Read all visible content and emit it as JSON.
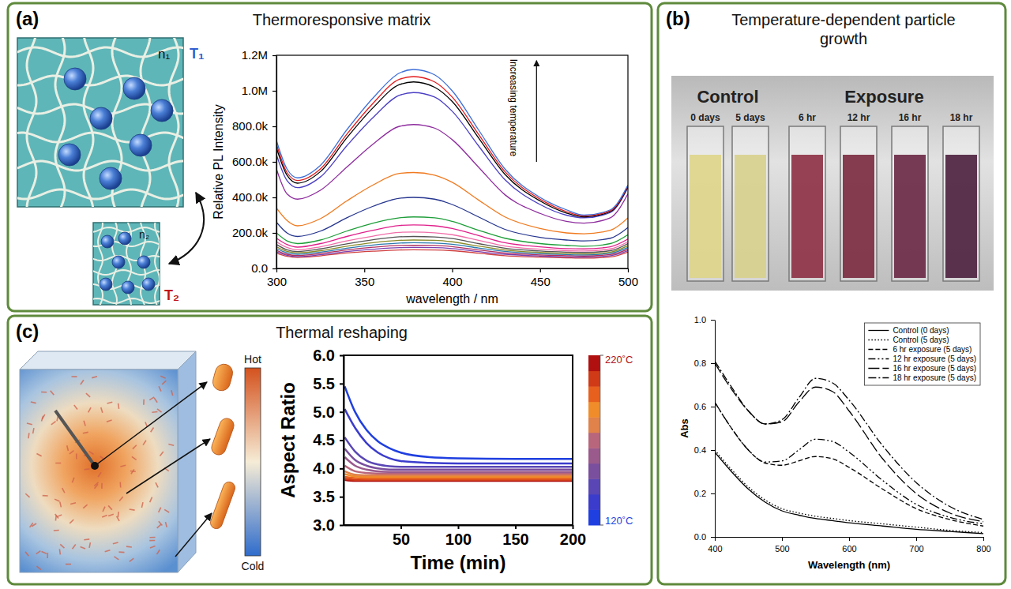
{
  "chart_data": [
    {
      "panel": "(a)",
      "title": "Thermoresponsive matrix",
      "type": "line",
      "annotations": [
        "Increasing temperature",
        "n₁",
        "T₁",
        "n₂",
        "T₂"
      ],
      "xlabel": "wavelength / nm",
      "ylabel": "Relative PL Intensity",
      "x": [
        300,
        306,
        312,
        325,
        340,
        355,
        370,
        378,
        390,
        400,
        415,
        430,
        450,
        465,
        475,
        490,
        500
      ],
      "xlim": [
        300,
        500
      ],
      "xticks": [
        300,
        350,
        400,
        450,
        500
      ],
      "ylim": [
        0,
        1200000
      ],
      "yticks": [
        {
          "value": 0,
          "label": "0.0"
        },
        {
          "value": 200000,
          "label": "200.0k"
        },
        {
          "value": 400000,
          "label": "400.0k"
        },
        {
          "value": 600000,
          "label": "600.0k"
        },
        {
          "value": 800000,
          "label": "800.0k"
        },
        {
          "value": 1000000,
          "label": "1.0M"
        },
        {
          "value": 1200000,
          "label": "1.2M"
        }
      ],
      "series": [
        {
          "color": "#3f6fd8",
          "values": [
            720000,
            560000,
            510000,
            580000,
            780000,
            960000,
            1100000,
            1120000,
            1090000,
            1000000,
            780000,
            560000,
            400000,
            330000,
            300000,
            330000,
            470000
          ]
        },
        {
          "color": "#e41a1c",
          "values": [
            700000,
            540000,
            495000,
            560000,
            755000,
            930000,
            1065000,
            1080000,
            1050000,
            965000,
            755000,
            545000,
            390000,
            320000,
            295000,
            325000,
            465000
          ]
        },
        {
          "color": "#000000",
          "values": [
            680000,
            525000,
            480000,
            545000,
            735000,
            905000,
            1035000,
            1050000,
            1020000,
            940000,
            735000,
            530000,
            380000,
            312000,
            290000,
            320000,
            460000
          ]
        },
        {
          "color": "#4b3fc4",
          "values": [
            640000,
            495000,
            455000,
            515000,
            690000,
            850000,
            975000,
            990000,
            965000,
            885000,
            690000,
            500000,
            360000,
            300000,
            285000,
            315000,
            455000
          ]
        },
        {
          "color": "#8e2c9e",
          "values": [
            560000,
            420000,
            390000,
            440000,
            570000,
            700000,
            800000,
            810000,
            790000,
            725000,
            570000,
            415000,
            310000,
            265000,
            255000,
            285000,
            420000
          ]
        },
        {
          "color": "#f07a1f",
          "values": [
            340000,
            270000,
            240000,
            280000,
            380000,
            470000,
            535000,
            540000,
            525000,
            485000,
            385000,
            290000,
            225000,
            200000,
            195000,
            215000,
            285000
          ]
        },
        {
          "color": "#26368f",
          "values": [
            260000,
            200000,
            180000,
            210000,
            285000,
            350000,
            395000,
            400000,
            390000,
            360000,
            290000,
            220000,
            175000,
            160000,
            155000,
            170000,
            230000
          ]
        },
        {
          "color": "#1f9e3a",
          "values": [
            200000,
            155000,
            140000,
            160000,
            210000,
            255000,
            285000,
            290000,
            285000,
            265000,
            215000,
            170000,
            140000,
            130000,
            125000,
            140000,
            190000
          ]
        },
        {
          "color": "#e0208b",
          "values": [
            170000,
            135000,
            120000,
            140000,
            180000,
            215000,
            242000,
            245000,
            240000,
            225000,
            185000,
            145000,
            122000,
            112000,
            110000,
            122000,
            165000
          ]
        },
        {
          "color": "#f06ea9",
          "values": [
            150000,
            118000,
            105000,
            122000,
            155000,
            182000,
            203000,
            205000,
            201000,
            190000,
            158000,
            126000,
            108000,
            100000,
            98000,
            110000,
            150000
          ]
        },
        {
          "color": "#555555",
          "values": [
            135000,
            105000,
            95000,
            110000,
            138000,
            162000,
            178000,
            180000,
            177000,
            168000,
            140000,
            114000,
            98000,
            92000,
            90000,
            100000,
            140000
          ]
        },
        {
          "color": "#8b8b2a",
          "values": [
            122000,
            96000,
            88000,
            100000,
            125000,
            145000,
            158000,
            160000,
            158000,
            150000,
            126000,
            104000,
            90000,
            84000,
            82000,
            92000,
            128000
          ]
        },
        {
          "color": "#2a7ab0",
          "values": [
            112000,
            88000,
            80000,
            92000,
            114000,
            132000,
            143000,
            145000,
            143000,
            136000,
            115000,
            96000,
            83000,
            78000,
            76000,
            85000,
            118000
          ]
        },
        {
          "color": "#b03060",
          "values": [
            102000,
            80000,
            73000,
            84000,
            104000,
            119000,
            129000,
            130000,
            129000,
            123000,
            104000,
            87000,
            76000,
            72000,
            70000,
            78000,
            108000
          ]
        },
        {
          "color": "#7a3fb0",
          "values": [
            94000,
            74000,
            67000,
            77000,
            95000,
            108000,
            117000,
            118000,
            117000,
            112000,
            95000,
            80000,
            70000,
            66000,
            64000,
            72000,
            100000
          ]
        },
        {
          "color": "#d04040",
          "values": [
            86000,
            68000,
            62000,
            71000,
            87000,
            97000,
            104000,
            105000,
            104000,
            100000,
            86000,
            72000,
            64000,
            60000,
            58000,
            65000,
            92000
          ]
        }
      ]
    },
    {
      "panel": "(b)",
      "title": "Temperature-dependent particle growth",
      "type": "line",
      "annotations": [
        "Control",
        "Exposure",
        "0 days",
        "5 days",
        "6 hr",
        "12 hr",
        "16 hr",
        "18 hr"
      ],
      "xlabel": "Wavelength (nm)",
      "ylabel": "Abs",
      "x": [
        400,
        425,
        450,
        475,
        500,
        525,
        550,
        575,
        600,
        650,
        700,
        750,
        800
      ],
      "xlim": [
        400,
        800
      ],
      "xticks": [
        400,
        500,
        600,
        700,
        800
      ],
      "ylim": [
        0,
        1
      ],
      "yticks": [
        {
          "value": 0,
          "label": "0.0"
        },
        0.2,
        0.4,
        0.6,
        0.8,
        {
          "value": 1,
          "label": "1.0"
        }
      ],
      "legend": "upper right",
      "series": [
        {
          "name": "Control (0 days)",
          "color": "#000000",
          "line_style": "solid",
          "values": [
            0.39,
            0.3,
            0.22,
            0.16,
            0.12,
            0.1,
            0.085,
            0.075,
            0.065,
            0.05,
            0.035,
            0.025,
            0.015
          ]
        },
        {
          "name": "Control (5 days)",
          "color": "#000000",
          "line_style": "dotted",
          "values": [
            0.4,
            0.31,
            0.23,
            0.17,
            0.13,
            0.11,
            0.095,
            0.085,
            0.075,
            0.06,
            0.045,
            0.03,
            0.02
          ]
        },
        {
          "name": "6 hr exposure (5 days)",
          "color": "#000000",
          "line_style": "dashed",
          "values": [
            0.62,
            0.5,
            0.4,
            0.34,
            0.33,
            0.35,
            0.37,
            0.36,
            0.32,
            0.22,
            0.13,
            0.08,
            0.05
          ]
        },
        {
          "name": "12 hr exposure (5 days)",
          "color": "#000000",
          "line_style": "dashdotdot",
          "values": [
            0.62,
            0.5,
            0.4,
            0.345,
            0.35,
            0.4,
            0.45,
            0.44,
            0.39,
            0.26,
            0.15,
            0.09,
            0.06
          ]
        },
        {
          "name": "16 hr exposure (5 days)",
          "color": "#000000",
          "line_style": "longdash",
          "values": [
            0.8,
            0.68,
            0.58,
            0.52,
            0.53,
            0.62,
            0.69,
            0.67,
            0.58,
            0.36,
            0.2,
            0.11,
            0.07
          ]
        },
        {
          "name": "18 hr exposure (5 days)",
          "color": "#000000",
          "line_style": "dashdot",
          "values": [
            0.81,
            0.69,
            0.58,
            0.52,
            0.54,
            0.64,
            0.73,
            0.71,
            0.63,
            0.42,
            0.25,
            0.14,
            0.08
          ]
        }
      ]
    },
    {
      "panel": "(c)",
      "title": "Thermal reshaping",
      "type": "line",
      "annotations": [
        "Hot",
        "Cold"
      ],
      "xlabel": "Time (min)",
      "ylabel": "Aspect Ratio",
      "x": [
        1,
        10,
        20,
        30,
        40,
        50,
        75,
        100,
        150,
        200
      ],
      "xlim": [
        0,
        200
      ],
      "xticks": [
        50,
        100,
        150,
        200
      ],
      "ylim": [
        3,
        6
      ],
      "yticks": [
        {
          "value": 3,
          "label": "3.0"
        },
        3.5,
        {
          "value": 4,
          "label": "4.0"
        },
        4.5,
        {
          "value": 5,
          "label": "5.0"
        },
        5.5,
        {
          "value": 6,
          "label": "6.0"
        }
      ],
      "colorbar": {
        "range": [
          120,
          220
        ],
        "ticks": [
          {
            "value": 220,
            "label": "220˚C"
          },
          {
            "value": 120,
            "label": "120˚C"
          }
        ]
      },
      "series": [
        {
          "color": "#1f3fe0",
          "values": [
            5.45,
            5.0,
            4.68,
            4.48,
            4.36,
            4.28,
            4.2,
            4.18,
            4.17,
            4.17
          ]
        },
        {
          "color": "#3b3ccc",
          "values": [
            5.05,
            4.72,
            4.45,
            4.28,
            4.18,
            4.13,
            4.1,
            4.09,
            4.09,
            4.09
          ]
        },
        {
          "color": "#5a47b5",
          "values": [
            4.55,
            4.3,
            4.14,
            4.07,
            4.04,
            4.03,
            4.03,
            4.03,
            4.03,
            4.03
          ]
        },
        {
          "color": "#7a4f9e",
          "values": [
            4.35,
            4.15,
            4.05,
            4.0,
            3.98,
            3.98,
            3.98,
            3.98,
            3.98,
            3.98
          ]
        },
        {
          "color": "#9a5a8c",
          "values": [
            4.2,
            4.05,
            3.98,
            3.95,
            3.94,
            3.94,
            3.94,
            3.94,
            3.94,
            3.94
          ]
        },
        {
          "color": "#b8667c",
          "values": [
            4.05,
            3.95,
            3.92,
            3.91,
            3.91,
            3.91,
            3.91,
            3.91,
            3.91,
            3.91
          ]
        },
        {
          "color": "#e0824a",
          "values": [
            3.95,
            3.89,
            3.88,
            3.88,
            3.88,
            3.88,
            3.88,
            3.88,
            3.88,
            3.88
          ]
        },
        {
          "color": "#f08c2a",
          "values": [
            3.9,
            3.86,
            3.85,
            3.85,
            3.85,
            3.85,
            3.85,
            3.85,
            3.85,
            3.85
          ]
        },
        {
          "color": "#e8601e",
          "values": [
            3.85,
            3.83,
            3.82,
            3.82,
            3.82,
            3.82,
            3.82,
            3.82,
            3.82,
            3.82
          ]
        },
        {
          "color": "#d03a16",
          "values": [
            3.82,
            3.8,
            3.8,
            3.8,
            3.8,
            3.8,
            3.8,
            3.8,
            3.8,
            3.8
          ]
        },
        {
          "color": "#b01010",
          "values": [
            3.8,
            3.78,
            3.78,
            3.78,
            3.78,
            3.78,
            3.78,
            3.78,
            3.78,
            3.78
          ]
        }
      ]
    }
  ]
}
